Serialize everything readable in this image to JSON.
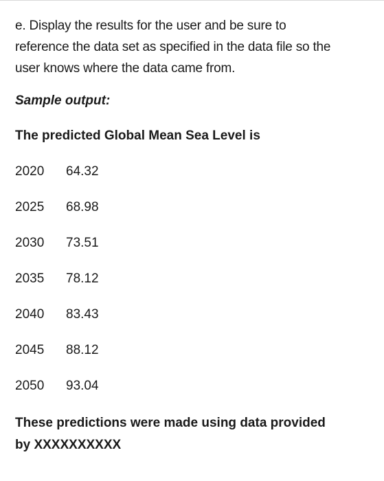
{
  "instruction": {
    "line1": "e. Display the results for the user and be sure to",
    "line2": "reference the data set as specified in the data file so the",
    "line3": "user knows where the data came from."
  },
  "sample_heading": "Sample output:",
  "predicted_heading": "The predicted Global Mean Sea Level is",
  "results": [
    {
      "year": "2020",
      "value": "64.32"
    },
    {
      "year": "2025",
      "value": "68.98"
    },
    {
      "year": "2030",
      "value": "73.51"
    },
    {
      "year": "2035",
      "value": "78.12"
    },
    {
      "year": "2040",
      "value": "83.43"
    },
    {
      "year": "2045",
      "value": "88.12"
    },
    {
      "year": "2050",
      "value": "93.04"
    }
  ],
  "footer": {
    "line1": "These predictions were made using data provided",
    "line2": "by XXXXXXXXXX"
  }
}
